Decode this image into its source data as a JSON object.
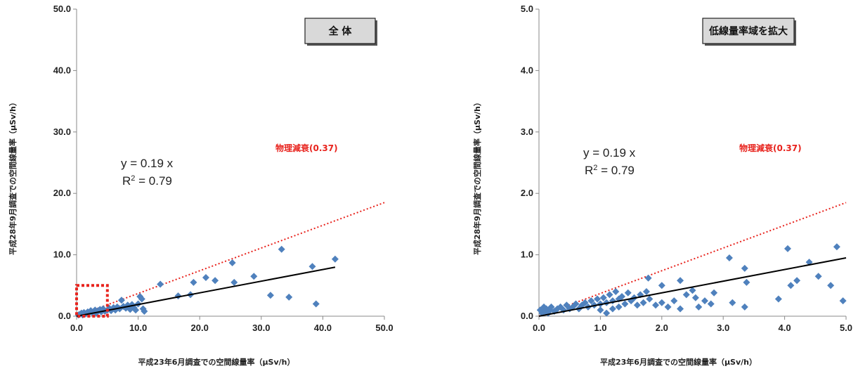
{
  "chart_data": [
    {
      "type": "scatter",
      "title": "全 体",
      "xlabel": "平成23年6月調査での空間線量率（μSv/h）",
      "ylabel": "平成28年9月調査での空間線量率（μSv/h）",
      "xlim": [
        0,
        50
      ],
      "ylim": [
        0,
        50
      ],
      "xticks": [
        "0.0",
        "10.0",
        "20.0",
        "30.0",
        "40.0",
        "50.0"
      ],
      "yticks": [
        "0.0",
        "10.0",
        "20.0",
        "30.0",
        "40.0",
        "50.0"
      ],
      "grid": false,
      "regression": {
        "equation": "y = 0.19 x",
        "r2_prefix": "R",
        "r2_sup": "2",
        "r2_value": " = 0.79",
        "slope": 0.19,
        "x_range": [
          0,
          42
        ]
      },
      "physical_decay": {
        "label": "物理減衰(0.37)",
        "slope": 0.37
      },
      "highlight_region": {
        "x": [
          0,
          5
        ],
        "y": [
          0,
          5
        ]
      },
      "series": [
        {
          "values": [
            [
              0.3,
              0.2
            ],
            [
              0.5,
              0.3
            ],
            [
              0.8,
              0.5
            ],
            [
              1.0,
              0.2
            ],
            [
              1.2,
              0.6
            ],
            [
              1.5,
              0.4
            ],
            [
              1.8,
              0.7
            ],
            [
              2.0,
              0.5
            ],
            [
              2.3,
              0.9
            ],
            [
              2.5,
              0.6
            ],
            [
              2.8,
              0.8
            ],
            [
              3.0,
              1.0
            ],
            [
              3.2,
              0.5
            ],
            [
              3.5,
              0.9
            ],
            [
              3.8,
              1.1
            ],
            [
              4.0,
              0.7
            ],
            [
              4.3,
              1.2
            ],
            [
              4.6,
              0.8
            ],
            [
              5.0,
              1.0
            ],
            [
              5.3,
              1.3
            ],
            [
              5.6,
              0.9
            ],
            [
              6.0,
              1.4
            ],
            [
              6.3,
              1.0
            ],
            [
              6.6,
              1.5
            ],
            [
              7.0,
              1.2
            ],
            [
              7.3,
              2.6
            ],
            [
              7.6,
              1.6
            ],
            [
              8.0,
              1.3
            ],
            [
              8.3,
              1.8
            ],
            [
              8.7,
              1.1
            ],
            [
              9.0,
              1.9
            ],
            [
              9.3,
              1.4
            ],
            [
              9.6,
              1.0
            ],
            [
              10.0,
              2.0
            ],
            [
              10.3,
              3.2
            ],
            [
              10.6,
              2.8
            ],
            [
              10.8,
              1.2
            ],
            [
              11.0,
              0.8
            ],
            [
              13.6,
              5.2
            ],
            [
              16.5,
              3.3
            ],
            [
              18.5,
              3.5
            ],
            [
              19.0,
              5.5
            ],
            [
              21.0,
              6.3
            ],
            [
              22.5,
              5.8
            ],
            [
              25.3,
              8.7
            ],
            [
              25.6,
              5.5
            ],
            [
              28.8,
              6.5
            ],
            [
              31.5,
              3.4
            ],
            [
              33.3,
              10.9
            ],
            [
              34.5,
              3.1
            ],
            [
              38.3,
              8.1
            ],
            [
              38.9,
              2.0
            ],
            [
              42.0,
              9.3
            ]
          ]
        }
      ]
    },
    {
      "type": "scatter",
      "title": "低線量率域を拡大",
      "xlabel": "平成23年6月調査での空間線量率（μSv/h）",
      "ylabel": "平成28年9月調査での空間線量率（μSv/h）",
      "xlim": [
        0,
        5
      ],
      "ylim": [
        0,
        5
      ],
      "xticks": [
        "0.0",
        "1.0",
        "2.0",
        "3.0",
        "4.0",
        "5.0"
      ],
      "yticks": [
        "0.0",
        "1.0",
        "2.0",
        "3.0",
        "4.0",
        "5.0"
      ],
      "grid": false,
      "regression": {
        "equation": "y = 0.19 x",
        "r2_prefix": "R",
        "r2_sup": "2",
        "r2_value": " = 0.79",
        "slope": 0.19,
        "x_range": [
          0,
          5
        ]
      },
      "physical_decay": {
        "label": "物理減衰(0.37)",
        "slope": 0.37
      },
      "series": [
        {
          "values": [
            [
              0.02,
              0.1
            ],
            [
              0.05,
              0.05
            ],
            [
              0.08,
              0.15
            ],
            [
              0.1,
              0.08
            ],
            [
              0.12,
              0.12
            ],
            [
              0.15,
              0.05
            ],
            [
              0.18,
              0.1
            ],
            [
              0.2,
              0.15
            ],
            [
              0.25,
              0.08
            ],
            [
              0.3,
              0.12
            ],
            [
              0.35,
              0.15
            ],
            [
              0.4,
              0.1
            ],
            [
              0.45,
              0.18
            ],
            [
              0.5,
              0.12
            ],
            [
              0.55,
              0.15
            ],
            [
              0.6,
              0.2
            ],
            [
              0.65,
              0.12
            ],
            [
              0.7,
              0.18
            ],
            [
              0.75,
              0.22
            ],
            [
              0.8,
              0.15
            ],
            [
              0.85,
              0.25
            ],
            [
              0.9,
              0.18
            ],
            [
              0.95,
              0.28
            ],
            [
              1.0,
              0.2
            ],
            [
              1.0,
              0.1
            ],
            [
              1.05,
              0.3
            ],
            [
              1.1,
              0.22
            ],
            [
              1.1,
              0.05
            ],
            [
              1.15,
              0.35
            ],
            [
              1.2,
              0.25
            ],
            [
              1.2,
              0.12
            ],
            [
              1.25,
              0.4
            ],
            [
              1.3,
              0.28
            ],
            [
              1.3,
              0.15
            ],
            [
              1.35,
              0.32
            ],
            [
              1.4,
              0.2
            ],
            [
              1.45,
              0.38
            ],
            [
              1.5,
              0.25
            ],
            [
              1.55,
              0.3
            ],
            [
              1.6,
              0.18
            ],
            [
              1.65,
              0.35
            ],
            [
              1.7,
              0.22
            ],
            [
              1.75,
              0.4
            ],
            [
              1.78,
              0.62
            ],
            [
              1.8,
              0.28
            ],
            [
              1.9,
              0.18
            ],
            [
              2.0,
              0.5
            ],
            [
              2.0,
              0.22
            ],
            [
              2.1,
              0.15
            ],
            [
              2.2,
              0.25
            ],
            [
              2.3,
              0.12
            ],
            [
              2.3,
              0.58
            ],
            [
              2.4,
              0.35
            ],
            [
              2.5,
              0.42
            ],
            [
              2.55,
              0.3
            ],
            [
              2.6,
              0.15
            ],
            [
              2.7,
              0.25
            ],
            [
              2.8,
              0.2
            ],
            [
              2.85,
              0.38
            ],
            [
              3.1,
              0.95
            ],
            [
              3.15,
              0.22
            ],
            [
              3.35,
              0.78
            ],
            [
              3.35,
              0.15
            ],
            [
              3.38,
              0.55
            ],
            [
              3.9,
              0.28
            ],
            [
              4.05,
              1.1
            ],
            [
              4.1,
              0.5
            ],
            [
              4.2,
              0.58
            ],
            [
              4.4,
              0.88
            ],
            [
              4.55,
              0.65
            ],
            [
              4.75,
              0.5
            ],
            [
              4.85,
              1.13
            ],
            [
              4.95,
              0.25
            ]
          ]
        }
      ]
    }
  ]
}
